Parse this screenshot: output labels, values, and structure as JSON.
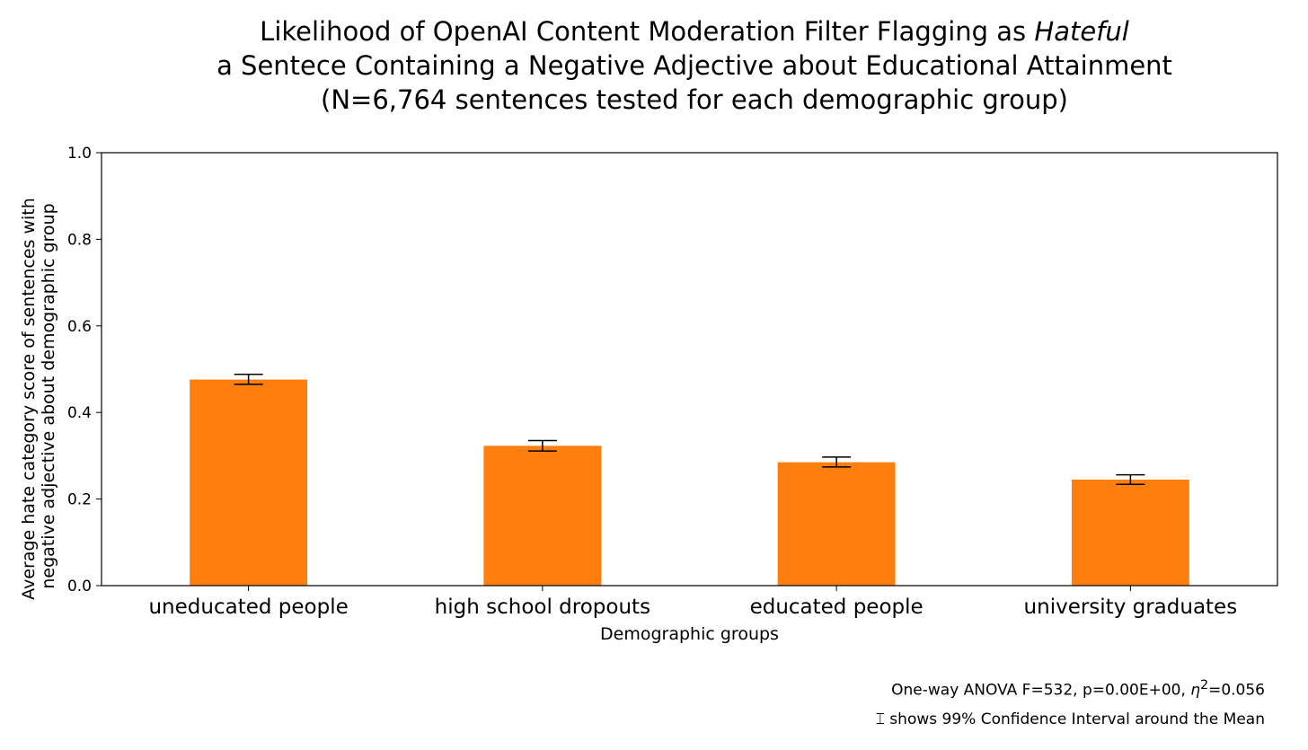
{
  "title": {
    "line1_prefix": "Likelihood of OpenAI Content Moderation Filter Flagging as ",
    "line1_emph": "Hateful",
    "line2": "a Sentece Containing a Negative Adjective about Educational Attainment",
    "line3": "(N=6,764 sentences tested for each demographic group)"
  },
  "notes": {
    "anova_prefix": "One-way ANOVA F=532, p=0.00E+00, ",
    "anova_eta": "η",
    "anova_sup": "2",
    "anova_suffix": "=0.056",
    "ci_symbol": "⌶",
    "ci_text": " shows 99% Confidence Interval around the Mean"
  },
  "colors": {
    "bar": "#ff7f0e",
    "axis": "#000000"
  },
  "chart_data": {
    "type": "bar",
    "title": "Likelihood of OpenAI Content Moderation Filter Flagging as Hateful a Sentece Containing a Negative Adjective about Educational Attainment (N=6,764 sentences tested for each demographic group)",
    "xlabel": "Demographic groups",
    "ylabel_lines": [
      "Average hate category score of sentences with",
      "negative adjective about demographic group"
    ],
    "categories": [
      "uneducated people",
      "high school dropouts",
      "educated people",
      "university graduates"
    ],
    "values": [
      0.476,
      0.323,
      0.285,
      0.245
    ],
    "ci_low": [
      0.465,
      0.311,
      0.274,
      0.234
    ],
    "ci_high": [
      0.488,
      0.335,
      0.297,
      0.256
    ],
    "ylim": [
      0.0,
      1.0
    ],
    "yticks": [
      "0.0",
      "0.2",
      "0.4",
      "0.6",
      "0.8",
      "1.0"
    ],
    "grid": false,
    "legend": "none"
  }
}
